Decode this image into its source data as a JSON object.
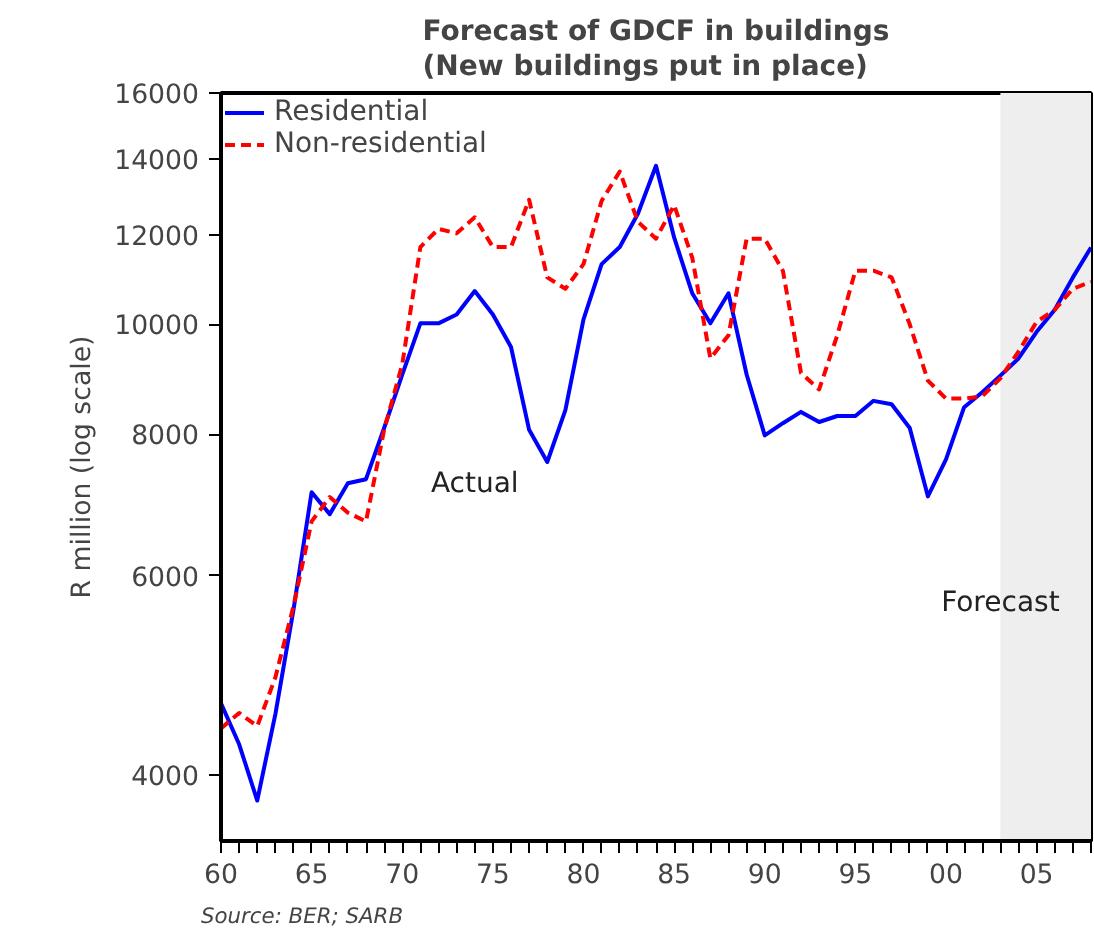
{
  "chart_data": {
    "type": "line",
    "title": "Forecast of GDCF in buildings\n(New buildings put in place)",
    "ylabel": "R million (log scale)",
    "log": "y",
    "x": [
      1960,
      1961,
      1962,
      1963,
      1964,
      1965,
      1966,
      1967,
      1968,
      1969,
      1970,
      1971,
      1972,
      1973,
      1974,
      1975,
      1976,
      1977,
      1978,
      1979,
      1980,
      1981,
      1982,
      1983,
      1984,
      1985,
      1986,
      1987,
      1988,
      1989,
      1990,
      1991,
      1992,
      1993,
      1994,
      1995,
      1996,
      1997,
      1998,
      1999,
      2000,
      2001,
      2002,
      2003,
      2004,
      2005,
      2006,
      2007,
      2008
    ],
    "series": [
      {
        "name": "Residential",
        "color": "#0000ff",
        "line_style": "solid",
        "values": [
          4630,
          4260,
          3800,
          4530,
          5600,
          7110,
          6800,
          7240,
          7300,
          8100,
          9030,
          10020,
          10020,
          10200,
          10700,
          10200,
          9550,
          8070,
          7560,
          8400,
          10100,
          11300,
          11700,
          12520,
          13800,
          11930,
          10650,
          10020,
          10650,
          9030,
          7980,
          8180,
          8370,
          8200,
          8300,
          8300,
          8560,
          8500,
          8100,
          7050,
          7600,
          8450,
          8710,
          9010,
          9330,
          9850,
          10300,
          11000,
          11690
        ]
      },
      {
        "name": "Non-residential",
        "color": "#ff0000",
        "line_style": "dashed",
        "values": [
          4400,
          4540,
          4420,
          4880,
          5640,
          6700,
          7040,
          6820,
          6700,
          8070,
          9220,
          11700,
          12140,
          12030,
          12430,
          11700,
          11700,
          12880,
          11000,
          10750,
          11300,
          12850,
          13640,
          12320,
          11900,
          12740,
          11450,
          9330,
          9780,
          11900,
          11900,
          11150,
          9060,
          8760,
          9780,
          11150,
          11150,
          11000,
          10000,
          8920,
          8600,
          8600,
          8640,
          8960,
          9460,
          10050,
          10300,
          10750,
          10900
        ]
      }
    ],
    "xlim": [
      1960,
      2008
    ],
    "xticks": [
      {
        "value": 1960,
        "label": "60"
      },
      {
        "value": 1961,
        "label": null
      },
      {
        "value": 1962,
        "label": null
      },
      {
        "value": 1963,
        "label": null
      },
      {
        "value": 1964,
        "label": null
      },
      {
        "value": 1965,
        "label": "65"
      },
      {
        "value": 1966,
        "label": null
      },
      {
        "value": 1967,
        "label": null
      },
      {
        "value": 1968,
        "label": null
      },
      {
        "value": 1969,
        "label": null
      },
      {
        "value": 1970,
        "label": "70"
      },
      {
        "value": 1971,
        "label": null
      },
      {
        "value": 1972,
        "label": null
      },
      {
        "value": 1973,
        "label": null
      },
      {
        "value": 1974,
        "label": null
      },
      {
        "value": 1975,
        "label": "75"
      },
      {
        "value": 1976,
        "label": null
      },
      {
        "value": 1977,
        "label": null
      },
      {
        "value": 1978,
        "label": null
      },
      {
        "value": 1979,
        "label": null
      },
      {
        "value": 1980,
        "label": "80"
      },
      {
        "value": 1981,
        "label": null
      },
      {
        "value": 1982,
        "label": null
      },
      {
        "value": 1983,
        "label": null
      },
      {
        "value": 1984,
        "label": null
      },
      {
        "value": 1985,
        "label": "85"
      },
      {
        "value": 1986,
        "label": null
      },
      {
        "value": 1987,
        "label": null
      },
      {
        "value": 1988,
        "label": null
      },
      {
        "value": 1989,
        "label": null
      },
      {
        "value": 1990,
        "label": "90"
      },
      {
        "value": 1991,
        "label": null
      },
      {
        "value": 1992,
        "label": null
      },
      {
        "value": 1993,
        "label": null
      },
      {
        "value": 1994,
        "label": null
      },
      {
        "value": 1995,
        "label": "95"
      },
      {
        "value": 1996,
        "label": null
      },
      {
        "value": 1997,
        "label": null
      },
      {
        "value": 1998,
        "label": null
      },
      {
        "value": 1999,
        "label": null
      },
      {
        "value": 2000,
        "label": "00"
      },
      {
        "value": 2001,
        "label": null
      },
      {
        "value": 2002,
        "label": null
      },
      {
        "value": 2003,
        "label": null
      },
      {
        "value": 2004,
        "label": null
      },
      {
        "value": 2005,
        "label": "05"
      },
      {
        "value": 2006,
        "label": null
      },
      {
        "value": 2007,
        "label": null
      },
      {
        "value": 2008,
        "label": null
      }
    ],
    "ylim": [
      3500,
      16000
    ],
    "yticks": [
      4000,
      6000,
      8000,
      10000,
      12000,
      14000,
      16000
    ],
    "bands": [
      {
        "axis": "x",
        "from": 2003,
        "to": 2008,
        "label": "Forecast",
        "color": "#eeeeee"
      }
    ],
    "annotations": [
      "Actual",
      "Source: BER; SARB"
    ],
    "legend": "top left",
    "grid": false
  }
}
